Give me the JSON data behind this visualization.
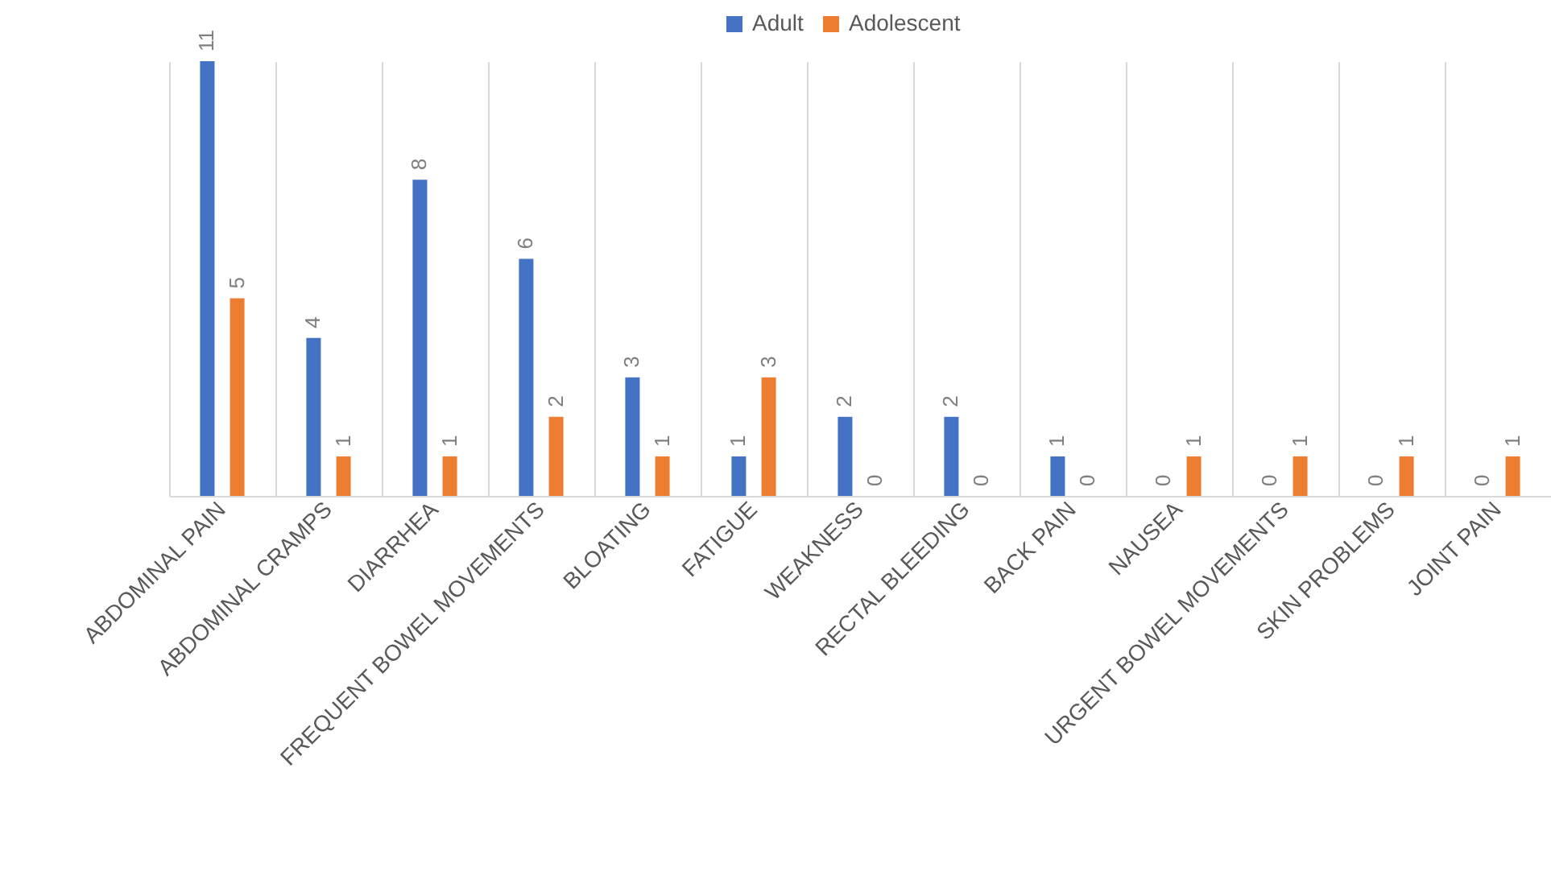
{
  "chart_data": {
    "type": "bar",
    "categories": [
      "ABDOMINAL PAIN",
      "ABDOMINAL CRAMPS",
      "DIARRHEA",
      "FREQUENT BOWEL MOVEMENTS",
      "BLOATING",
      "FATIGUE",
      "WEAKNESS",
      "RECTAL BLEEDING",
      "BACK PAIN",
      "NAUSEA",
      "URGENT BOWEL MOVEMENTS",
      "SKIN PROBLEMS",
      "JOINT PAIN"
    ],
    "series": [
      {
        "name": "Adult",
        "color": "#4472c4",
        "values": [
          11,
          4,
          8,
          6,
          3,
          1,
          2,
          2,
          1,
          0,
          0,
          0,
          0
        ]
      },
      {
        "name": "Adolescent",
        "color": "#ed7d31",
        "values": [
          5,
          1,
          1,
          2,
          1,
          3,
          0,
          0,
          0,
          1,
          1,
          1,
          1
        ]
      }
    ],
    "data_labels": true,
    "legend": "top",
    "grid": "x",
    "tick_labels": "x"
  }
}
